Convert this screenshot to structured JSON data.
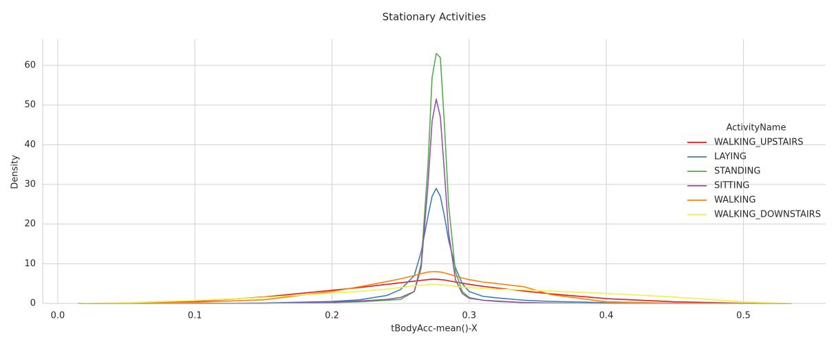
{
  "chart_data": {
    "type": "line",
    "title": "Stationary Activities",
    "x_label": "tBodyAcc-mean()-X",
    "y_label": "Density",
    "legend_title": "ActivityName",
    "legend_position": "right",
    "grid": true,
    "xlim": [
      -0.011,
      0.56
    ],
    "ylim": [
      0,
      66.6
    ],
    "xticks": [
      {
        "value": 0,
        "label": "0.0"
      },
      0.1,
      0.2,
      0.3,
      0.4,
      0.5
    ],
    "yticks": [
      0,
      10,
      20,
      30,
      40,
      50,
      60
    ],
    "x": [
      0.015,
      0.05,
      0.1,
      0.15,
      0.2,
      0.22,
      0.24,
      0.25,
      0.26,
      0.265,
      0.27,
      0.273,
      0.276,
      0.279,
      0.282,
      0.285,
      0.29,
      0.295,
      0.3,
      0.31,
      0.32,
      0.34,
      0.36,
      0.4,
      0.45,
      0.5,
      0.535
    ],
    "series": [
      {
        "name": "WALKING_UPSTAIRS",
        "color": "#e41a1c",
        "values": [
          0,
          0.1,
          0.5,
          1.6,
          3.3,
          4.0,
          4.8,
          5.2,
          5.6,
          5.8,
          6.0,
          6.1,
          6.1,
          6.0,
          5.9,
          5.7,
          5.4,
          5.1,
          4.8,
          4.3,
          3.9,
          3.1,
          2.4,
          1.2,
          0.4,
          0.05,
          0
        ]
      },
      {
        "name": "LAYING",
        "color": "#377eb8",
        "values": [
          0,
          0,
          0,
          0.1,
          0.5,
          0.9,
          2.0,
          3.5,
          7,
          13,
          22,
          27,
          29,
          27,
          22,
          16,
          9,
          5,
          3,
          1.8,
          1.4,
          0.8,
          0.5,
          0.2,
          0.05,
          0,
          0
        ]
      },
      {
        "name": "STANDING",
        "color": "#4daf4a",
        "values": [
          0,
          0,
          0,
          0,
          0.2,
          0.4,
          0.8,
          1.0,
          3,
          10,
          35,
          57,
          63,
          62,
          45,
          25,
          8,
          3,
          1.5,
          0.8,
          0.5,
          0.2,
          0.1,
          0,
          0,
          0,
          0
        ]
      },
      {
        "name": "SITTING",
        "color": "#984ea3",
        "values": [
          0,
          0,
          0,
          0,
          0.3,
          0.6,
          1.0,
          1.5,
          3,
          9,
          30,
          46,
          51.5,
          47,
          33,
          18,
          6,
          2.5,
          1.3,
          0.8,
          0.6,
          0.2,
          0.1,
          0,
          0,
          0,
          0
        ]
      },
      {
        "name": "WALKING",
        "color": "#ff7f00",
        "values": [
          0,
          0,
          0.3,
          0.9,
          3.0,
          4.2,
          5.5,
          6.2,
          7.0,
          7.5,
          7.9,
          8.0,
          8.0,
          7.9,
          7.7,
          7.4,
          6.9,
          6.4,
          6.0,
          5.4,
          5.0,
          4.2,
          2.2,
          0.4,
          0.05,
          0,
          0
        ]
      },
      {
        "name": "WALKING_DOWNSTAIRS",
        "color": "#f2f23a",
        "values": [
          0,
          0.2,
          0.7,
          1.5,
          2.6,
          3.0,
          3.6,
          4.0,
          4.4,
          4.6,
          4.7,
          4.8,
          4.8,
          4.7,
          4.6,
          4.5,
          4.3,
          4.1,
          4.0,
          3.8,
          3.6,
          3.4,
          3.1,
          2.5,
          1.6,
          0.4,
          0
        ]
      }
    ]
  }
}
